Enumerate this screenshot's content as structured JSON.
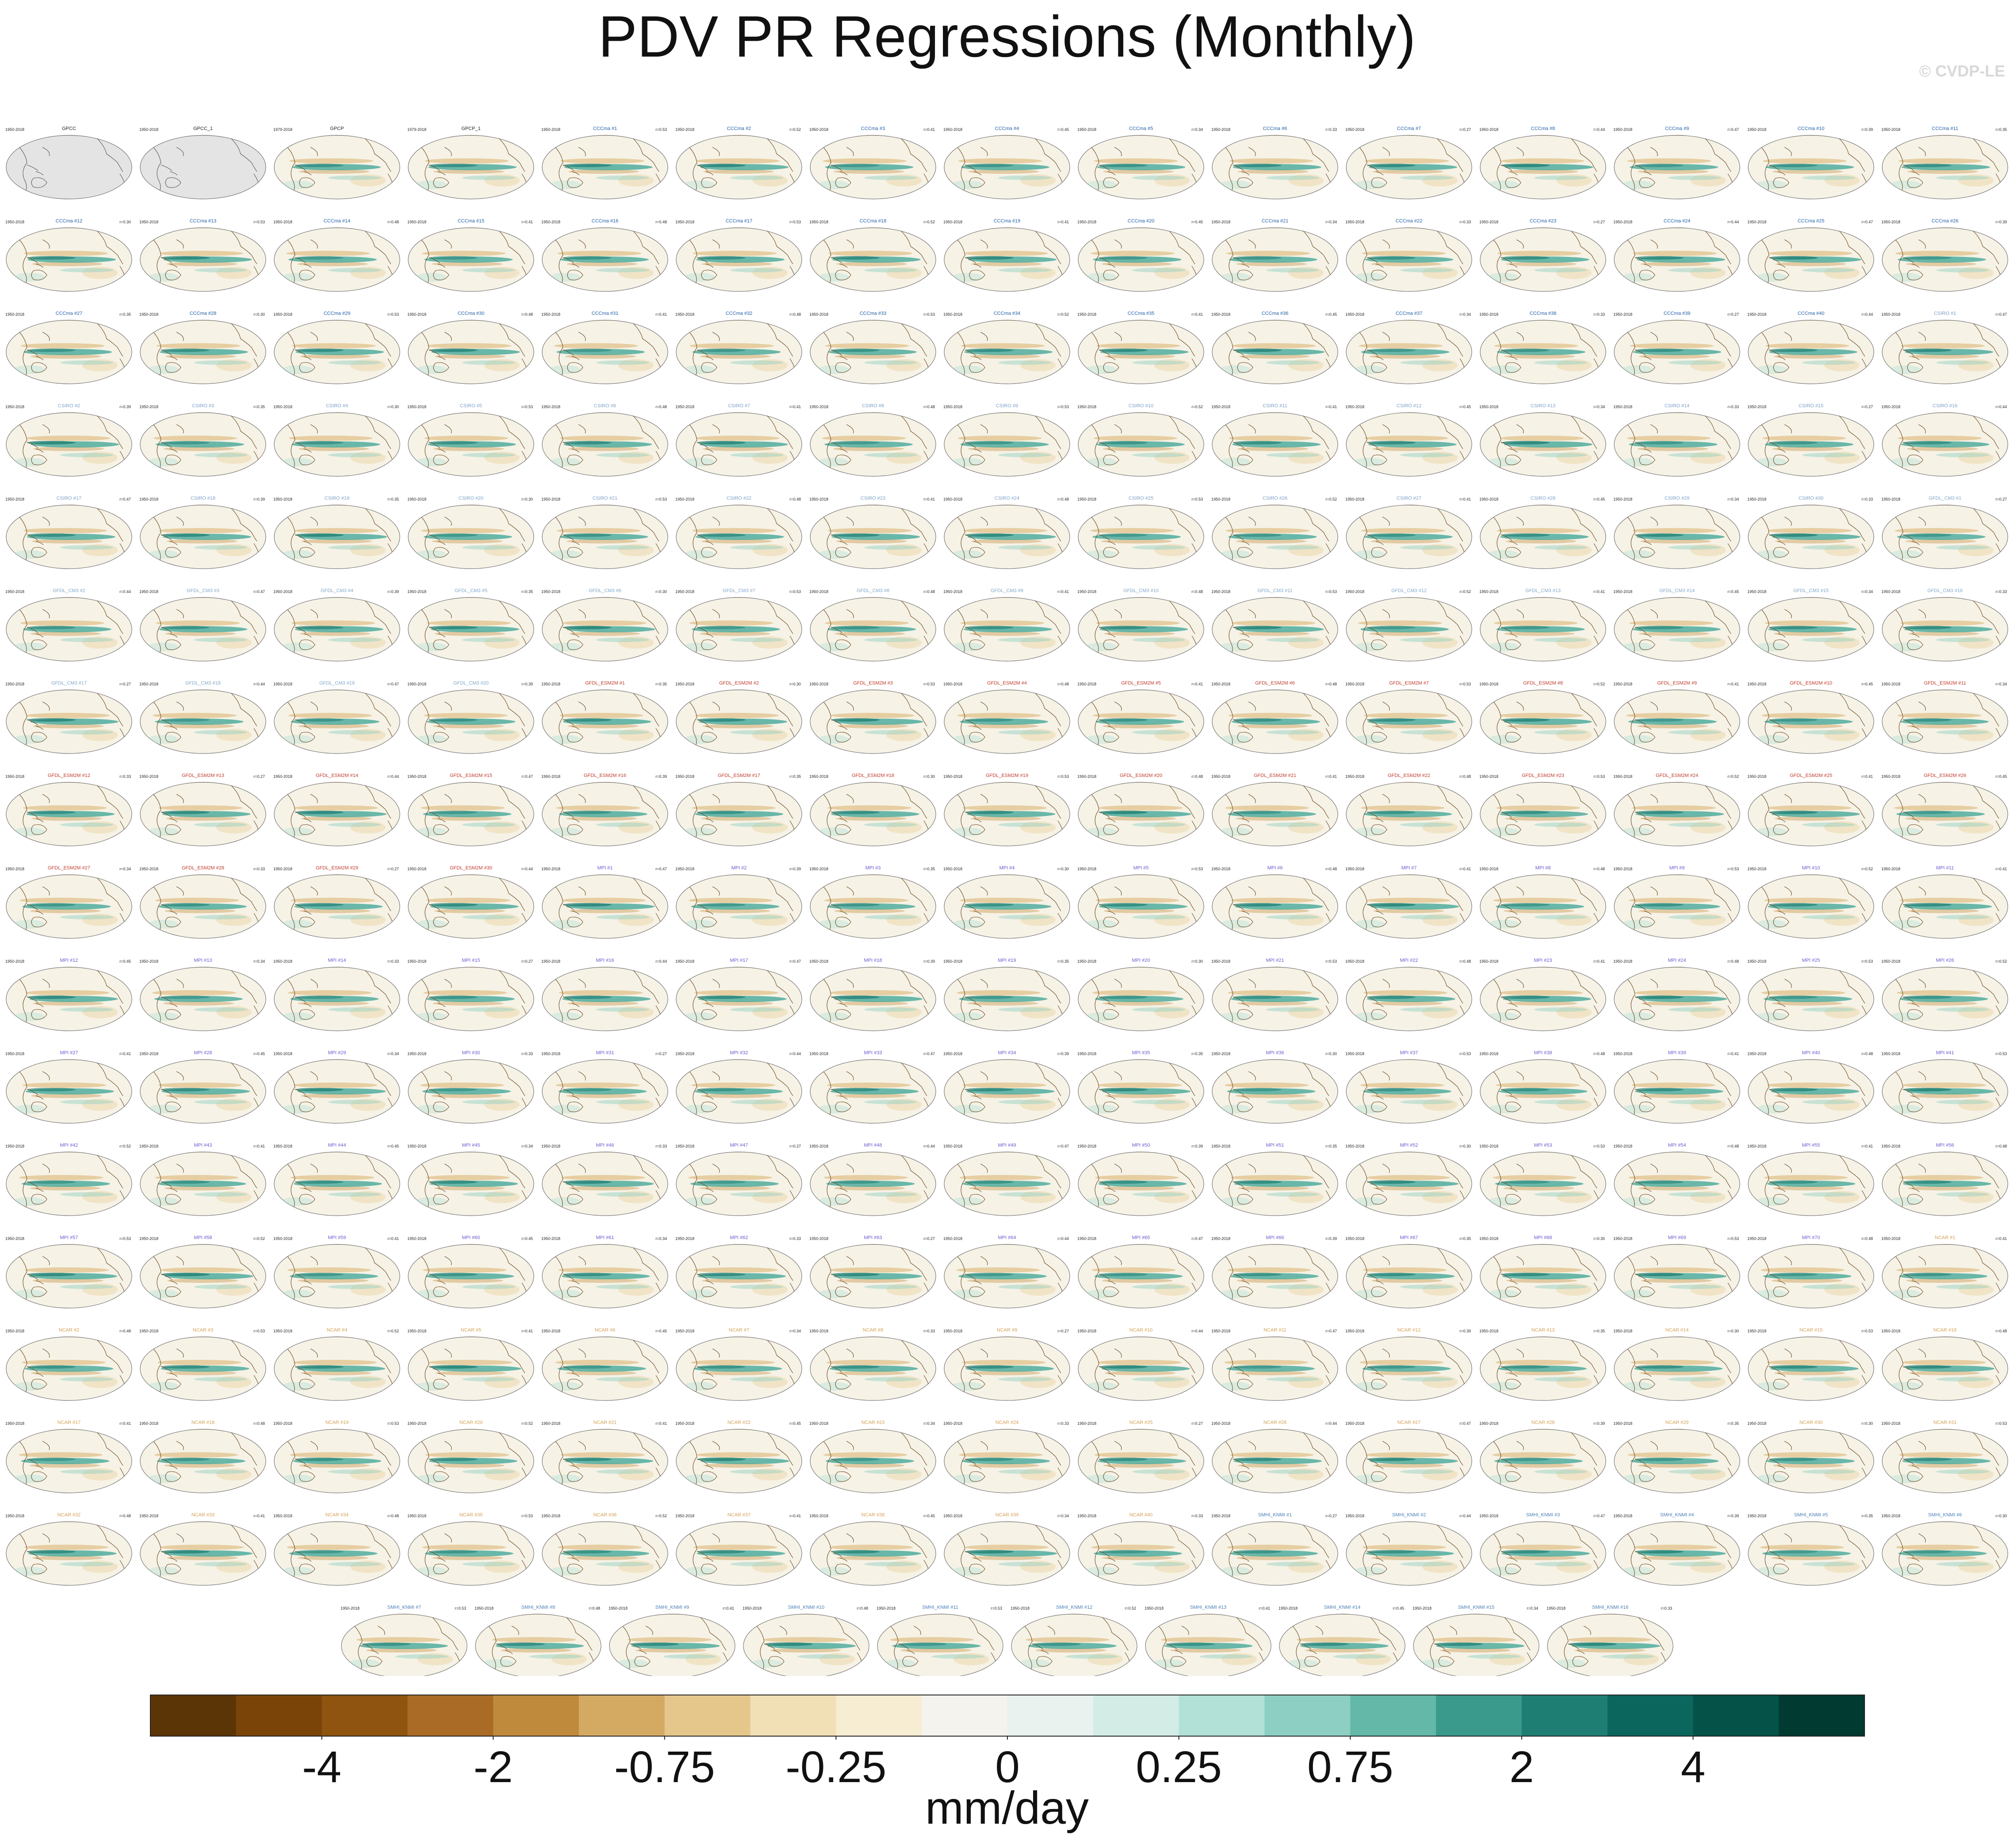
{
  "title": "PDV PR Regressions (Monthly)",
  "watermark": "© CVDP-LE",
  "chart_data": {
    "type": "map-grid",
    "panel_count": 250,
    "panels_per_row": 15,
    "panel_columns_in_last_row": 10,
    "panel_header_font_note": "tiny header text per panel: years left, title center, pattern correlation right",
    "groups": [
      {
        "name": "GPCC",
        "titles": [
          "GPCC",
          "GPCC_1"
        ],
        "years": "1950-2018",
        "color": "#222222",
        "observational": true,
        "missing_data_shading": true
      },
      {
        "name": "GPCP",
        "titles": [
          "GPCP",
          "GPCP_1"
        ],
        "years": "1979-2018",
        "color": "#222222",
        "observational": true
      },
      {
        "name": "CCCma",
        "prefix": "CCCma",
        "count": 40,
        "years": "1950-2018",
        "color": "#1f5fa8"
      },
      {
        "name": "CSIRO",
        "prefix": "CSIRO",
        "count": 30,
        "years": "1950-2018",
        "color": "#7da0c8"
      },
      {
        "name": "GFDL_CM3",
        "prefix": "GFDL_CM3",
        "count": 20,
        "years": "1950-2018",
        "color": "#7fa7c9"
      },
      {
        "name": "GFDL_ESM2M",
        "prefix": "GFDL_ESM2M",
        "count": 30,
        "years": "1950-2018",
        "color": "#c0392b"
      },
      {
        "name": "MPI",
        "prefix": "MPI",
        "count": 70,
        "years": "1950-2018",
        "color": "#6a5acd"
      },
      {
        "name": "NCAR",
        "prefix": "NCAR",
        "count": 40,
        "years": "1950-2018",
        "color": "#d4a055"
      },
      {
        "name": "SMHI_KNMI",
        "prefix": "SMHI_KNMI",
        "count": 16,
        "years": "1950-2018",
        "color": "#4a7fb5"
      }
    ],
    "correlation_values": [
      "r=0.53",
      "r=0.48",
      "r=0.41",
      "r=0.48",
      "r=0.53",
      "r=0.52",
      "r=0.41",
      "r=0.45",
      "r=0.34",
      "r=0.33",
      "r=0.27",
      "r=0.44",
      "r=0.47",
      "r=0.39",
      "r=0.35",
      "r=0.30"
    ],
    "colorbar": {
      "colors": [
        "#5c3507",
        "#7a4409",
        "#8f540f",
        "#a96b25",
        "#c08a3c",
        "#d4aa63",
        "#e5c78c",
        "#f1dfb6",
        "#f6edd3",
        "#f4f3ee",
        "#e9f2ef",
        "#d3ece6",
        "#b2e1d8",
        "#8dcfc2",
        "#63b8a8",
        "#3a9a8c",
        "#1f7e73",
        "#0b665e",
        "#045248",
        "#013a30"
      ],
      "tick_labels": [
        "-4",
        "-2",
        "-0.75",
        "-0.25",
        "0",
        "0.25",
        "0.75",
        "2",
        "4"
      ],
      "unit": "mm/day"
    }
  }
}
